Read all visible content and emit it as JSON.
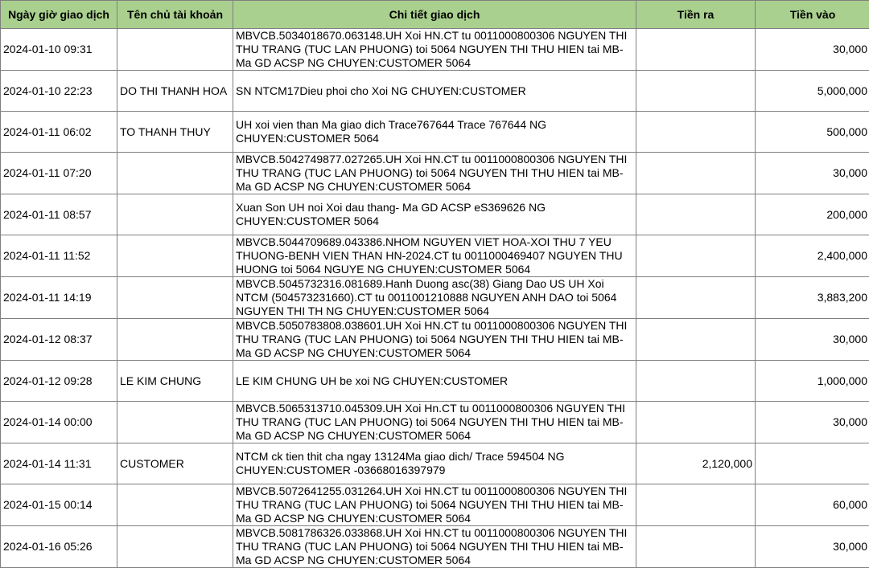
{
  "header_color": "#a9d08e",
  "columns": [
    "Ngày giờ giao dịch",
    "Tên chủ tài khoản",
    "Chi tiết giao dịch",
    "Tiền ra",
    "Tiền vào"
  ],
  "rows": [
    {
      "date": "2024-01-10 09:31",
      "name": "",
      "detail": "MBVCB.5034018670.063148.UH Xoi HN.CT tu 0011000800306 NGUYEN THI THU TRANG (TUC LAN PHUONG) toi 5064 NGUYEN THI THU HIEN tai MB- Ma GD ACSP  NG CHUYEN:CUSTOMER 5064",
      "out": "",
      "in": "30,000"
    },
    {
      "date": "2024-01-10 22:23",
      "name": "DO THI THANH HOA",
      "detail": "SN NTCM17Dieu phoi cho Xoi NG CHUYEN:CUSTOMER",
      "out": "",
      "in": "5,000,000"
    },
    {
      "date": "2024-01-11 06:02",
      "name": "TO THANH THUY",
      "detail": "UH xoi vien than   Ma giao dich  Trace767644 Trace 767644 NG CHUYEN:CUSTOMER 5064",
      "out": "",
      "in": "500,000"
    },
    {
      "date": "2024-01-11 07:20",
      "name": "",
      "detail": "MBVCB.5042749877.027265.UH Xoi HN.CT tu 0011000800306 NGUYEN THI THU TRANG (TUC LAN PHUONG) toi 5064 NGUYEN THI THU HIEN tai MB- Ma GD ACSP  NG CHUYEN:CUSTOMER 5064",
      "out": "",
      "in": "30,000"
    },
    {
      "date": "2024-01-11 08:57",
      "name": "",
      "detail": "Xuan Son UH noi Xoi dau thang- Ma GD ACSP eS369626 NG CHUYEN:CUSTOMER 5064",
      "out": "",
      "in": "200,000"
    },
    {
      "date": "2024-01-11 11:52",
      "name": "",
      "detail": "MBVCB.5044709689.043386.NHOM NGUYEN VIET HOA-XOI THU 7 YEU THUONG-BENH VIEN THAN HN-2024.CT tu 0011000469407 NGUYEN THU HUONG toi 5064 NGUYE NG CHUYEN:CUSTOMER 5064",
      "out": "",
      "in": "2,400,000"
    },
    {
      "date": "2024-01-11 14:19",
      "name": "",
      "detail": "MBVCB.5045732316.081689.Hanh Duong asc(38) Giang Dao US UH Xoi NTCM (504573231660).CT tu 0011001210888 NGUYEN ANH DAO toi 5064 NGUYEN THI TH NG CHUYEN:CUSTOMER 5064",
      "out": "",
      "in": "3,883,200"
    },
    {
      "date": "2024-01-12 08:37",
      "name": "",
      "detail": "MBVCB.5050783808.038601.UH Xoi HN.CT tu 0011000800306 NGUYEN THI THU TRANG (TUC LAN PHUONG) toi 5064 NGUYEN THI THU HIEN tai MB- Ma GD ACSP  NG CHUYEN:CUSTOMER 5064",
      "out": "",
      "in": "30,000"
    },
    {
      "date": "2024-01-12 09:28",
      "name": "LE KIM CHUNG",
      "detail": "LE KIM CHUNG UH be xoi NG CHUYEN:CUSTOMER",
      "out": "",
      "in": "1,000,000"
    },
    {
      "date": "2024-01-14 00:00",
      "name": "",
      "detail": "MBVCB.5065313710.045309.UH Xoi Hn.CT tu 0011000800306 NGUYEN THI THU TRANG (TUC LAN PHUONG) toi 5064 NGUYEN THI THU HIEN tai MB- Ma GD ACSP  NG CHUYEN:CUSTOMER 5064",
      "out": "",
      "in": "30,000"
    },
    {
      "date": "2024-01-14 11:31",
      "name": "CUSTOMER",
      "detail": "NTCM ck tien thit cha ngay 13124Ma giao dich/ Trace 594504 NG CHUYEN:CUSTOMER -03668016397979",
      "out": "2,120,000",
      "in": ""
    },
    {
      "date": "2024-01-15 00:14",
      "name": "",
      "detail": "MBVCB.5072641255.031264.UH Xoi HN.CT tu 0011000800306 NGUYEN THI THU TRANG (TUC LAN PHUONG) toi 5064 NGUYEN THI THU HIEN tai MB- Ma GD ACSP  NG CHUYEN:CUSTOMER 5064",
      "out": "",
      "in": "60,000"
    },
    {
      "date": "2024-01-16 05:26",
      "name": "",
      "detail": "MBVCB.5081786326.033868.UH Xoi HN.CT tu 0011000800306 NGUYEN THI THU TRANG (TUC LAN PHUONG) toi 5064 NGUYEN THI THU HIEN tai MB- Ma GD ACSP  NG CHUYEN:CUSTOMER 5064",
      "out": "",
      "in": "30,000"
    }
  ]
}
